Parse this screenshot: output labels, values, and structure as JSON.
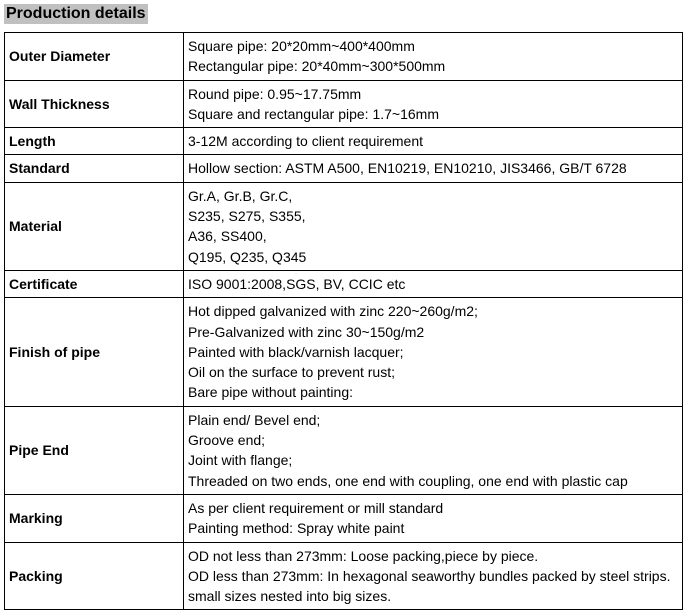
{
  "title": "Production details",
  "rows": [
    {
      "label": "Outer Diameter",
      "lines": [
        "Square pipe: 20*20mm~400*400mm",
        "Rectangular pipe: 20*40mm~300*500mm"
      ]
    },
    {
      "label": "Wall Thickness",
      "lines": [
        "Round pipe: 0.95~17.75mm",
        "Square and rectangular pipe: 1.7~16mm"
      ]
    },
    {
      "label": "Length",
      "lines": [
        "3-12M according to client requirement"
      ]
    },
    {
      "label": "Standard",
      "lines": [
        "Hollow section: ASTM A500, EN10219, EN10210, JIS3466, GB/T 6728"
      ]
    },
    {
      "label": "Material",
      "lines": [
        "Gr.A, Gr.B, Gr.C,",
        "S235, S275, S355,",
        "A36, SS400,",
        "Q195, Q235, Q345"
      ]
    },
    {
      "label": "Certificate",
      "lines": [
        "ISO 9001:2008,SGS, BV, CCIC etc"
      ]
    },
    {
      "label": "Finish of pipe",
      "lines": [
        "Hot dipped galvanized with zinc 220~260g/m2;",
        "Pre-Galvanized with zinc 30~150g/m2",
        "Painted with black/varnish lacquer;",
        "Oil on the surface to prevent rust;",
        "Bare pipe without painting:"
      ]
    },
    {
      "label": "Pipe End",
      "lines": [
        "Plain end/ Bevel end;",
        "Groove end;",
        "Joint with flange;",
        "Threaded on two ends, one end with coupling, one end with plastic cap"
      ]
    },
    {
      "label": "Marking",
      "lines": [
        "As per client requirement or mill standard",
        "Painting method: Spray white paint"
      ]
    },
    {
      "label": "Packing",
      "lines": [
        "OD not less than 273mm: Loose packing,piece by piece.",
        "OD less than 273mm: In hexagonal seaworthy bundles packed by steel strips.",
        "small sizes nested into big sizes."
      ]
    }
  ]
}
